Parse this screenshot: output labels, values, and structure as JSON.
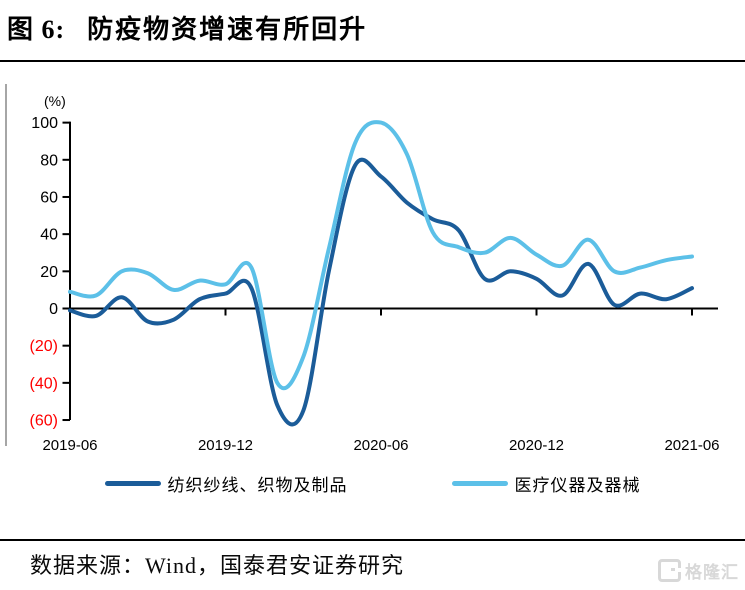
{
  "header": {
    "figure_label": "图 6:",
    "title": "防疫物资增速有所回升"
  },
  "chart_data": {
    "type": "line",
    "unit_label": "(%)",
    "x": [
      "2019-06",
      "2019-07",
      "2019-08",
      "2019-09",
      "2019-10",
      "2019-11",
      "2019-12",
      "2020-01",
      "2020-02",
      "2020-03",
      "2020-04",
      "2020-05",
      "2020-06",
      "2020-07",
      "2020-08",
      "2020-09",
      "2020-10",
      "2020-11",
      "2020-12",
      "2021-01",
      "2021-02",
      "2021-03",
      "2021-04",
      "2021-05",
      "2021-06"
    ],
    "series": [
      {
        "name": "纺织纱线、织物及制品",
        "color": "#1b5c99",
        "values": [
          -1,
          -4,
          6,
          -7,
          -6,
          5,
          8,
          11,
          -52,
          -55,
          21,
          77,
          71,
          57,
          48,
          42,
          16,
          20,
          16,
          7,
          24,
          2,
          8,
          5,
          11
        ]
      },
      {
        "name": "医疗仪器及器械",
        "color": "#5cc0e8",
        "values": [
          9,
          7,
          20,
          19,
          10,
          15,
          13,
          22,
          -40,
          -26,
          33,
          89,
          100,
          83,
          41,
          33,
          30,
          38,
          29,
          23,
          37,
          20,
          22,
          26,
          28
        ]
      }
    ],
    "y_ticks": [
      {
        "label": "100",
        "value": 100,
        "color": "#000000"
      },
      {
        "label": "80",
        "value": 80,
        "color": "#000000"
      },
      {
        "label": "60",
        "value": 60,
        "color": "#000000"
      },
      {
        "label": "40",
        "value": 40,
        "color": "#000000"
      },
      {
        "label": "20",
        "value": 20,
        "color": "#000000"
      },
      {
        "label": "0",
        "value": 0,
        "color": "#000000"
      },
      {
        "label": "(20)",
        "value": -20,
        "color": "#ff0000"
      },
      {
        "label": "(40)",
        "value": -40,
        "color": "#ff0000"
      },
      {
        "label": "(60)",
        "value": -60,
        "color": "#ff0000"
      }
    ],
    "x_ticks": [
      {
        "label": "2019-06",
        "index": 0
      },
      {
        "label": "2019-12",
        "index": 6
      },
      {
        "label": "2020-06",
        "index": 12
      },
      {
        "label": "2020-12",
        "index": 18
      },
      {
        "label": "2021-06",
        "index": 24
      }
    ],
    "ylim": [
      -60,
      100
    ],
    "grid": false,
    "legend_position": "bottom",
    "negative_label_style": "red-parentheses"
  },
  "footer": {
    "source": "数据来源：Wind，国泰君安证券研究"
  },
  "watermark": {
    "brand": "格隆汇"
  }
}
